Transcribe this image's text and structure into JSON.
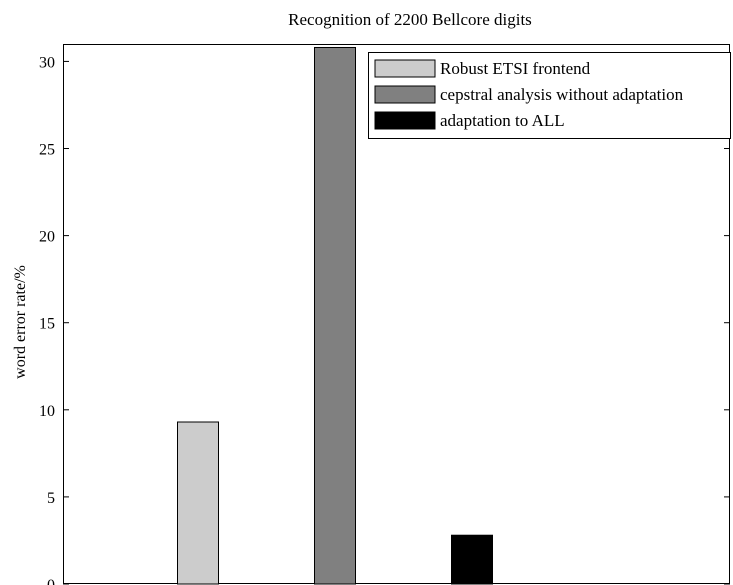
{
  "chart_data": {
    "type": "bar",
    "title": "Recognition of 2200 Bellcore digits",
    "ylabel": "word error rate/%",
    "xlabel": "",
    "ylim": [
      0,
      31
    ],
    "yticks": [
      0,
      5,
      10,
      15,
      20,
      25,
      30
    ],
    "grid": false,
    "legend_position": "top-right",
    "series": [
      {
        "name": "Robust ETSI frontend",
        "value": 9.3,
        "color": "#cccccc"
      },
      {
        "name": "cepstral analysis without adaptation",
        "value": 30.8,
        "color": "#808080"
      },
      {
        "name": "adaptation to ALL",
        "value": 2.8,
        "color": "#000000"
      }
    ]
  }
}
